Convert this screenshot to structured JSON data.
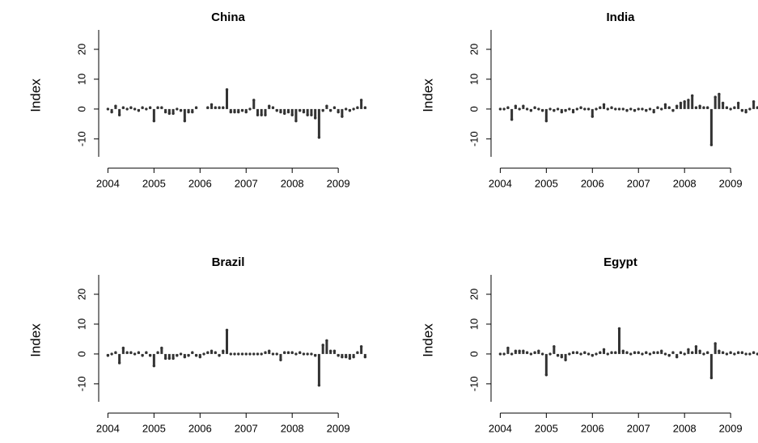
{
  "chart_data": [
    {
      "type": "needle",
      "title": "China",
      "ylabel": "Index",
      "color": "#333333",
      "x": [
        2004,
        2004.083,
        2004.167,
        2004.25,
        2004.333,
        2004.417,
        2004.5,
        2004.583,
        2004.667,
        2004.75,
        2004.833,
        2004.917,
        2005,
        2005.083,
        2005.167,
        2005.25,
        2005.333,
        2005.417,
        2005.5,
        2005.583,
        2005.667,
        2005.75,
        2005.833,
        2005.917,
        2006,
        2006.083,
        2006.167,
        2006.25,
        2006.333,
        2006.417,
        2006.5,
        2006.583,
        2006.667,
        2006.75,
        2006.833,
        2006.917,
        2007,
        2007.083,
        2007.167,
        2007.25,
        2007.333,
        2007.417,
        2007.5,
        2007.583,
        2007.667,
        2007.75,
        2007.833,
        2007.917,
        2008,
        2008.083,
        2008.167,
        2008.25,
        2008.333,
        2008.417,
        2008.5,
        2008.583,
        2008.667,
        2008.75,
        2008.833,
        2008.917,
        2009,
        2009.083,
        2009.167,
        2009.25,
        2009.333,
        2009.417,
        2009.5,
        2009.583
      ],
      "values": [
        0,
        -1,
        1,
        -2,
        0.5,
        0,
        0.5,
        0,
        -0.5,
        0.5,
        0,
        0.5,
        -4,
        0.5,
        0.5,
        -1,
        -1.5,
        -1.5,
        0,
        -0.5,
        -4,
        -1,
        -1,
        0.5,
        null,
        null,
        0.5,
        1.5,
        0.5,
        0.5,
        0.5,
        6.5,
        -1,
        -1,
        -1,
        -0.5,
        -1,
        0,
        3,
        -2,
        -2,
        -2,
        1,
        0.5,
        -0.5,
        -1,
        -1.5,
        -1,
        -2,
        -4,
        -0.5,
        -1,
        -2,
        -2,
        -3,
        -9.5,
        -0.5,
        1,
        -0.5,
        0.5,
        -1,
        -2.5,
        0,
        -0.5,
        0,
        0.5,
        3,
        0.5
      ],
      "xlim": [
        2003.8,
        2009.77
      ],
      "xticks": [
        2004,
        2005,
        2006,
        2007,
        2008,
        2009
      ],
      "ylim": [
        -16,
        26.5
      ],
      "yticks": [
        -10,
        0,
        10,
        20
      ]
    },
    {
      "type": "needle",
      "title": "India",
      "ylabel": "Index",
      "color": "#333333",
      "x": [
        2004,
        2004.083,
        2004.167,
        2004.25,
        2004.333,
        2004.417,
        2004.5,
        2004.583,
        2004.667,
        2004.75,
        2004.833,
        2004.917,
        2005,
        2005.083,
        2005.167,
        2005.25,
        2005.333,
        2005.417,
        2005.5,
        2005.583,
        2005.667,
        2005.75,
        2005.833,
        2005.917,
        2006,
        2006.083,
        2006.167,
        2006.25,
        2006.333,
        2006.417,
        2006.5,
        2006.583,
        2006.667,
        2006.75,
        2006.833,
        2006.917,
        2007,
        2007.083,
        2007.167,
        2007.25,
        2007.333,
        2007.417,
        2007.5,
        2007.583,
        2007.667,
        2007.75,
        2007.833,
        2007.917,
        2008,
        2008.083,
        2008.167,
        2008.25,
        2008.333,
        2008.417,
        2008.5,
        2008.583,
        2008.667,
        2008.75,
        2008.833,
        2008.917,
        2009,
        2009.083,
        2009.167,
        2009.25,
        2009.333,
        2009.417,
        2009.5,
        2009.583
      ],
      "values": [
        0,
        0,
        0.5,
        -3.5,
        1,
        0,
        1,
        0,
        -0.5,
        0.5,
        0,
        -0.5,
        -4,
        0,
        -0.5,
        0,
        -1,
        -0.5,
        0,
        -1,
        0,
        0.5,
        0,
        0,
        -2.5,
        0,
        0.5,
        1.5,
        0,
        0.5,
        0,
        0,
        0,
        -0.5,
        0,
        -0.5,
        0,
        0,
        -0.5,
        0,
        -1,
        0.5,
        0,
        1.5,
        0.5,
        -0.5,
        1,
        2,
        2.5,
        3,
        4.5,
        0.5,
        1,
        0.5,
        0.5,
        -12,
        4,
        5,
        2,
        0.5,
        0,
        0.5,
        2,
        -0.5,
        -1,
        0,
        2.5,
        0.5
      ],
      "xlim": [
        2003.8,
        2009.77
      ],
      "xticks": [
        2004,
        2005,
        2006,
        2007,
        2008,
        2009
      ],
      "ylim": [
        -16,
        26.5
      ],
      "yticks": [
        -10,
        0,
        10,
        20
      ]
    },
    {
      "type": "needle",
      "title": "Brazil",
      "ylabel": "Index",
      "color": "#333333",
      "x": [
        2004,
        2004.083,
        2004.167,
        2004.25,
        2004.333,
        2004.417,
        2004.5,
        2004.583,
        2004.667,
        2004.75,
        2004.833,
        2004.917,
        2005,
        2005.083,
        2005.167,
        2005.25,
        2005.333,
        2005.417,
        2005.5,
        2005.583,
        2005.667,
        2005.75,
        2005.833,
        2005.917,
        2006,
        2006.083,
        2006.167,
        2006.25,
        2006.333,
        2006.417,
        2006.5,
        2006.583,
        2006.667,
        2006.75,
        2006.833,
        2006.917,
        2007,
        2007.083,
        2007.167,
        2007.25,
        2007.333,
        2007.417,
        2007.5,
        2007.583,
        2007.667,
        2007.75,
        2007.833,
        2007.917,
        2008,
        2008.083,
        2008.167,
        2008.25,
        2008.333,
        2008.417,
        2008.5,
        2008.583,
        2008.667,
        2008.75,
        2008.833,
        2008.917,
        2009,
        2009.083,
        2009.167,
        2009.25,
        2009.333,
        2009.417,
        2009.5,
        2009.583
      ],
      "values": [
        -0.5,
        0,
        0.5,
        -3,
        2,
        0.5,
        0.5,
        0,
        0.5,
        -0.5,
        0.5,
        -0.5,
        -4,
        0.5,
        2,
        -1.5,
        -1.5,
        -1.5,
        -0.5,
        0,
        -1,
        -0.5,
        0.5,
        -0.5,
        -1,
        0,
        0.5,
        1,
        0.5,
        -0.5,
        1,
        8,
        0,
        0,
        0,
        0,
        0,
        0,
        0,
        0,
        0,
        0.5,
        1,
        0,
        0,
        -2,
        0.5,
        0.5,
        0.5,
        0,
        0.5,
        0,
        0,
        0,
        -0.5,
        -10.5,
        3,
        4.5,
        1,
        1,
        -0.5,
        -1,
        -1,
        -1.5,
        -1,
        0.5,
        2.5,
        -1
      ],
      "xlim": [
        2003.8,
        2009.77
      ],
      "xticks": [
        2004,
        2005,
        2006,
        2007,
        2008,
        2009
      ],
      "ylim": [
        -16,
        26.5
      ],
      "yticks": [
        -10,
        0,
        10,
        20
      ]
    },
    {
      "type": "needle",
      "title": "Egypt",
      "ylabel": "Index",
      "color": "#333333",
      "x": [
        2004,
        2004.083,
        2004.167,
        2004.25,
        2004.333,
        2004.417,
        2004.5,
        2004.583,
        2004.667,
        2004.75,
        2004.833,
        2004.917,
        2005,
        2005.083,
        2005.167,
        2005.25,
        2005.333,
        2005.417,
        2005.5,
        2005.583,
        2005.667,
        2005.75,
        2005.833,
        2005.917,
        2006,
        2006.083,
        2006.167,
        2006.25,
        2006.333,
        2006.417,
        2006.5,
        2006.583,
        2006.667,
        2006.75,
        2006.833,
        2006.917,
        2007,
        2007.083,
        2007.167,
        2007.25,
        2007.333,
        2007.417,
        2007.5,
        2007.583,
        2007.667,
        2007.75,
        2007.833,
        2007.917,
        2008,
        2008.083,
        2008.167,
        2008.25,
        2008.333,
        2008.417,
        2008.5,
        2008.583,
        2008.667,
        2008.75,
        2008.833,
        2008.917,
        2009,
        2009.083,
        2009.167,
        2009.25,
        2009.333,
        2009.417,
        2009.5,
        2009.583
      ],
      "values": [
        0,
        0,
        2,
        0,
        1,
        1,
        1,
        0.5,
        0,
        0.5,
        1,
        0,
        -7,
        0,
        2.5,
        -0.5,
        -1,
        -2,
        0,
        0.5,
        0.5,
        0,
        0.5,
        0,
        -0.5,
        0,
        0.5,
        1.5,
        0,
        0.5,
        0.5,
        8.5,
        1,
        0.5,
        0,
        0.5,
        0.5,
        0,
        0.5,
        0,
        0.5,
        0.5,
        1,
        0,
        -0.5,
        0.5,
        -1,
        0.5,
        0,
        1.5,
        0.5,
        2.5,
        1,
        0,
        0.5,
        -8,
        3.5,
        1,
        0.5,
        0,
        0.5,
        0,
        0.5,
        0.5,
        0,
        0,
        0.5,
        0
      ],
      "xlim": [
        2003.8,
        2009.77
      ],
      "xticks": [
        2004,
        2005,
        2006,
        2007,
        2008,
        2009
      ],
      "ylim": [
        -16,
        26.5
      ],
      "yticks": [
        -10,
        0,
        10,
        20
      ]
    }
  ]
}
